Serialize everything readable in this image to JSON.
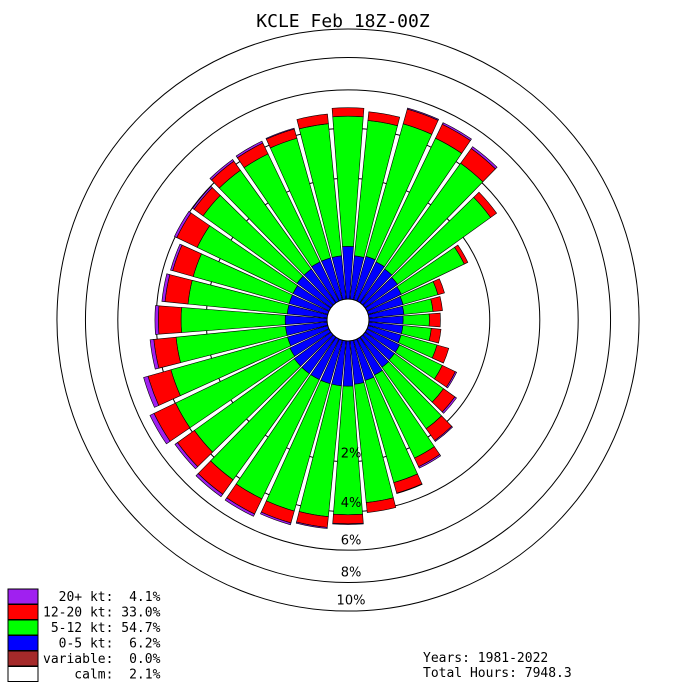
{
  "chart_data": {
    "type": "windrose",
    "title": "KCLE Feb 18Z-00Z",
    "radial_unit": "%",
    "rings": [
      {
        "value": 2,
        "label": "2%"
      },
      {
        "value": 4,
        "label": "4%"
      },
      {
        "value": 6,
        "label": "6%"
      },
      {
        "value": 8,
        "label": "8%"
      },
      {
        "value": 10,
        "label": "10%"
      }
    ],
    "directions_deg": [
      0,
      10,
      20,
      30,
      40,
      50,
      60,
      70,
      80,
      90,
      100,
      110,
      120,
      130,
      140,
      150,
      160,
      170,
      180,
      190,
      200,
      210,
      220,
      230,
      240,
      250,
      260,
      270,
      280,
      290,
      300,
      310,
      320,
      330,
      340,
      350
    ],
    "series": [
      {
        "name": "0-5 kt",
        "color": "#0000ff",
        "values": [
          0.38,
          0.26,
          0.28,
          0.26,
          0.24,
          0.22,
          0.2,
          0.18,
          0.17,
          0.16,
          0.16,
          0.16,
          0.18,
          0.18,
          0.19,
          0.22,
          0.24,
          0.26,
          0.28,
          0.28,
          0.28,
          0.28,
          0.28,
          0.28,
          0.26,
          0.24,
          0.24,
          0.24,
          0.22,
          0.22,
          0.22,
          0.24,
          0.24,
          0.26,
          0.26,
          0.26
        ]
      },
      {
        "name": "5-12 kt",
        "color": "#00ff00",
        "values": [
          4.2,
          4.16,
          4.3,
          4.22,
          3.82,
          3.06,
          1.4,
          0.54,
          0.4,
          0.34,
          0.38,
          0.54,
          0.78,
          1.1,
          1.56,
          2.18,
          2.76,
          3.36,
          3.86,
          4.0,
          4.04,
          4.04,
          3.96,
          3.6,
          3.72,
          3.4,
          2.92,
          2.68,
          2.46,
          2.46,
          2.72,
          3.16,
          3.42,
          3.4,
          3.6,
          4.0
        ]
      },
      {
        "name": "12-20 kt",
        "color": "#ff0000",
        "values": [
          0.44,
          0.44,
          0.8,
          0.8,
          0.9,
          0.32,
          0.12,
          0.14,
          0.18,
          0.2,
          0.18,
          0.26,
          0.36,
          0.4,
          0.48,
          0.36,
          0.46,
          0.46,
          0.44,
          0.54,
          0.62,
          0.86,
          0.9,
          1.02,
          1.2,
          1.14,
          1.0,
          0.98,
          0.96,
          0.88,
          0.98,
          0.5,
          0.52,
          0.56,
          0.46,
          0.48
        ]
      },
      {
        "name": "20+ kt",
        "color": "#a020f0",
        "values": [
          0.0,
          0.0,
          0.06,
          0.1,
          0.12,
          0.0,
          0.0,
          0.0,
          0.0,
          0.0,
          0.0,
          0.0,
          0.04,
          0.06,
          0.04,
          0.06,
          0.02,
          0.0,
          0.04,
          0.06,
          0.1,
          0.14,
          0.16,
          0.16,
          0.24,
          0.24,
          0.18,
          0.16,
          0.14,
          0.1,
          0.12,
          0.08,
          0.1,
          0.1,
          0.04,
          0.0
        ]
      }
    ],
    "legend": {
      "position": "bottom-left",
      "entries": [
        {
          "text": "  20+ kt:  4.1%",
          "color": "#a020f0"
        },
        {
          "text": "12-20 kt: 33.0%",
          "color": "#ff0000"
        },
        {
          "text": " 5-12 kt: 54.7%",
          "color": "#00ff00"
        },
        {
          "text": "  0-5 kt:  6.2%",
          "color": "#0000ff"
        },
        {
          "text": "variable:  0.0%",
          "color": "#a52a2a"
        },
        {
          "text": "    calm:  2.1%",
          "color": "#ffffff"
        }
      ]
    },
    "footer": {
      "years": "Years: 1981-2022",
      "total_hours": "Total Hours: 7948.3"
    }
  }
}
